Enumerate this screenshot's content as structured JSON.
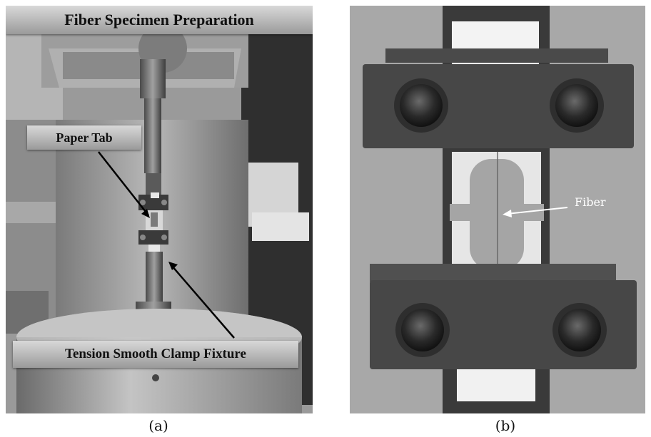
{
  "panel_a": {
    "title": "Fiber Specimen Preparation",
    "label_tab": "Paper Tab",
    "label_clamp": "Tension Smooth Clamp Fixture",
    "caption": "(a)"
  },
  "panel_b": {
    "label_fiber": "Fiber",
    "caption": "(b)"
  }
}
